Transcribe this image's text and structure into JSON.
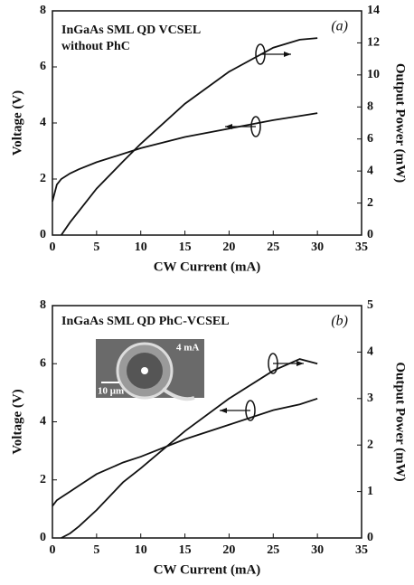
{
  "chart_data": [
    {
      "type": "line",
      "xlabel": "CW Current (mA)",
      "ylabel": "Voltage (V)",
      "y2label": "Output Power (mW)",
      "annotations": [
        "InGaAs SML QD VCSEL",
        "without PhC",
        "(a)"
      ],
      "x": [
        0,
        0.5,
        1,
        2,
        3,
        5,
        8,
        10,
        15,
        20,
        25,
        28,
        30
      ],
      "xlim": [
        0,
        35
      ],
      "xticks": [
        0,
        5,
        10,
        15,
        20,
        25,
        30,
        35
      ],
      "ylim": [
        0,
        8
      ],
      "yticks": [
        0,
        2,
        4,
        6,
        8
      ],
      "y2lim": [
        0,
        14
      ],
      "y2ticks": [
        0,
        2,
        4,
        6,
        8,
        10,
        12,
        14
      ],
      "series": [
        {
          "color": "#111111",
          "values": [
            1.2,
            1.8,
            2.0,
            2.2,
            2.35,
            2.6,
            2.9,
            3.1,
            3.5,
            3.8,
            4.1,
            4.25,
            4.35
          ]
        },
        {
          "color": "#111111",
          "axis": "y2",
          "values": [
            null,
            null,
            0,
            0.8,
            1.5,
            2.9,
            4.6,
            5.7,
            8.2,
            10.2,
            11.7,
            12.2,
            12.3
          ]
        }
      ]
    },
    {
      "type": "line",
      "xlabel": "CW Current (mA)",
      "ylabel": "Voltage (V)",
      "y2label": "Output Power (mW)",
      "annotations": [
        "InGaAs SML QD PhC-VCSEL",
        "(b)",
        "4 mA",
        "10 μm"
      ],
      "x": [
        0,
        0.5,
        1,
        2,
        3,
        5,
        8,
        10,
        15,
        20,
        25,
        28,
        30
      ],
      "xlim": [
        0,
        35
      ],
      "xticks": [
        0,
        5,
        10,
        15,
        20,
        25,
        30,
        35
      ],
      "ylim": [
        0,
        8
      ],
      "yticks": [
        0,
        2,
        4,
        6,
        8
      ],
      "y2lim": [
        0,
        5
      ],
      "y2ticks": [
        0,
        1,
        2,
        3,
        4,
        5
      ],
      "series": [
        {
          "color": "#111111",
          "values": [
            1.1,
            1.3,
            1.4,
            1.6,
            1.8,
            2.2,
            2.6,
            2.8,
            3.4,
            3.9,
            4.4,
            4.6,
            4.8
          ]
        },
        {
          "color": "#111111",
          "axis": "y2",
          "values": [
            null,
            null,
            0,
            0.1,
            0.25,
            0.6,
            1.2,
            1.5,
            2.3,
            3.0,
            3.6,
            3.85,
            3.75
          ]
        }
      ]
    }
  ]
}
